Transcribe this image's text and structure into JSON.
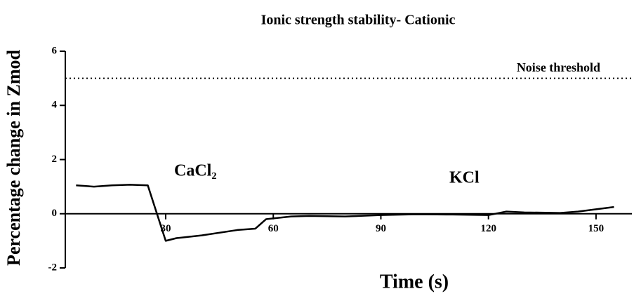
{
  "chart_data": {
    "type": "line",
    "title": "Ionic strength stability- Cationic",
    "x_label": "Time (s)",
    "y_label": "Percentage change in Zmod",
    "x": [
      5,
      10,
      15,
      20,
      25,
      30,
      33,
      40,
      50,
      55,
      58,
      65,
      70,
      80,
      90,
      100,
      110,
      120,
      125,
      130,
      140,
      145,
      155
    ],
    "series": [
      {
        "color": "#000000",
        "values": [
          1.05,
          1.0,
          1.05,
          1.07,
          1.05,
          -1.0,
          -0.9,
          -0.8,
          -0.6,
          -0.55,
          -0.2,
          -0.1,
          -0.08,
          -0.1,
          -0.05,
          -0.02,
          -0.03,
          -0.05,
          0.08,
          0.05,
          0.03,
          0.08,
          0.25
        ]
      }
    ],
    "xlim": [
      2,
      160
    ],
    "xticks": [
      30,
      60,
      90,
      120,
      150
    ],
    "ylim": [
      -2,
      6
    ],
    "yticks": [
      -2,
      0,
      2,
      4,
      6
    ],
    "threshold": {
      "value": 5,
      "label": "Noise threshold"
    },
    "annotations": [
      "CaCl₂",
      "KCl"
    ]
  }
}
